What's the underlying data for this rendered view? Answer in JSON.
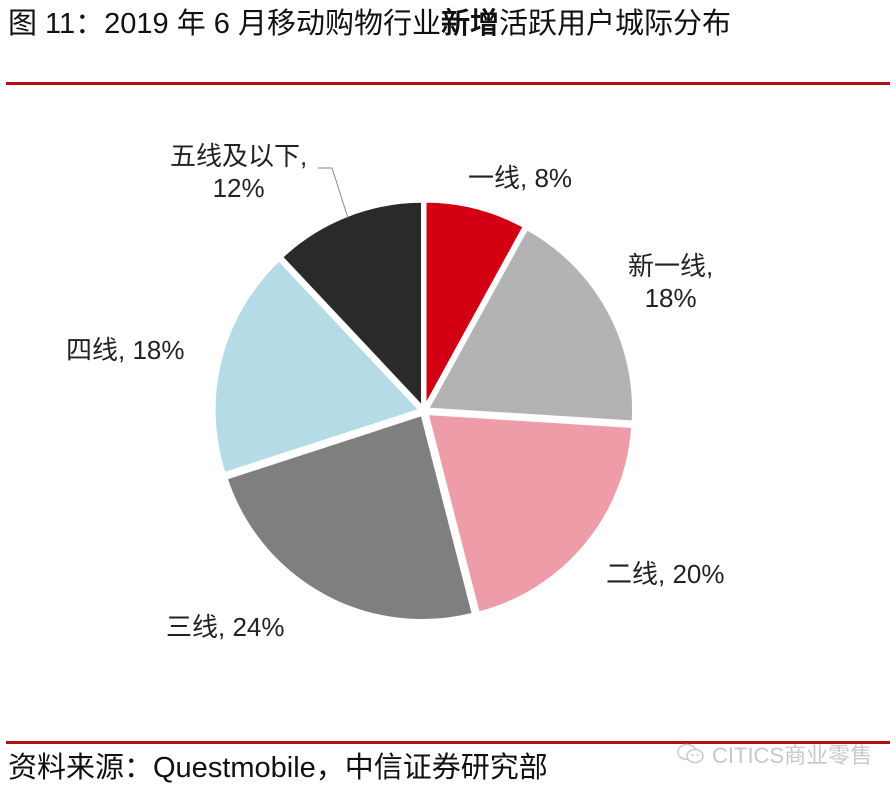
{
  "header": {
    "title_prefix": "图 11：2019 年 6 月移动购物行业",
    "title_bold": "新增",
    "title_suffix": "活跃用户城际分布"
  },
  "footer": {
    "source": "资料来源：Questmobile，中信证券研究部",
    "watermark_icon": "wechat-icon",
    "watermark_text": "CITICS商业零售"
  },
  "colors": {
    "rule": "#b00f14"
  },
  "chart_data": {
    "type": "pie",
    "title": "2019 年 6 月移动购物行业新增活跃用户城际分布",
    "start_angle_deg": 0,
    "direction": "clockwise",
    "exploded": true,
    "categories": [
      "一线",
      "新一线",
      "二线",
      "三线",
      "四线",
      "五线及以下"
    ],
    "values": [
      8,
      18,
      20,
      24,
      18,
      12
    ],
    "unit": "%",
    "colors": [
      "#d20012",
      "#b3b3b3",
      "#ee9ca7",
      "#7f7f7f",
      "#b5dbe6",
      "#2a2a2a"
    ],
    "labels": [
      {
        "line1": "一线, 8%",
        "line2": ""
      },
      {
        "line1": "新一线,",
        "line2": "18%"
      },
      {
        "line1": "二线, 20%",
        "line2": ""
      },
      {
        "line1": "三线, 24%",
        "line2": ""
      },
      {
        "line1": "四线, 18%",
        "line2": ""
      },
      {
        "line1": "五线及以下,",
        "line2": "12%"
      }
    ],
    "legend": "none (data labels)"
  }
}
